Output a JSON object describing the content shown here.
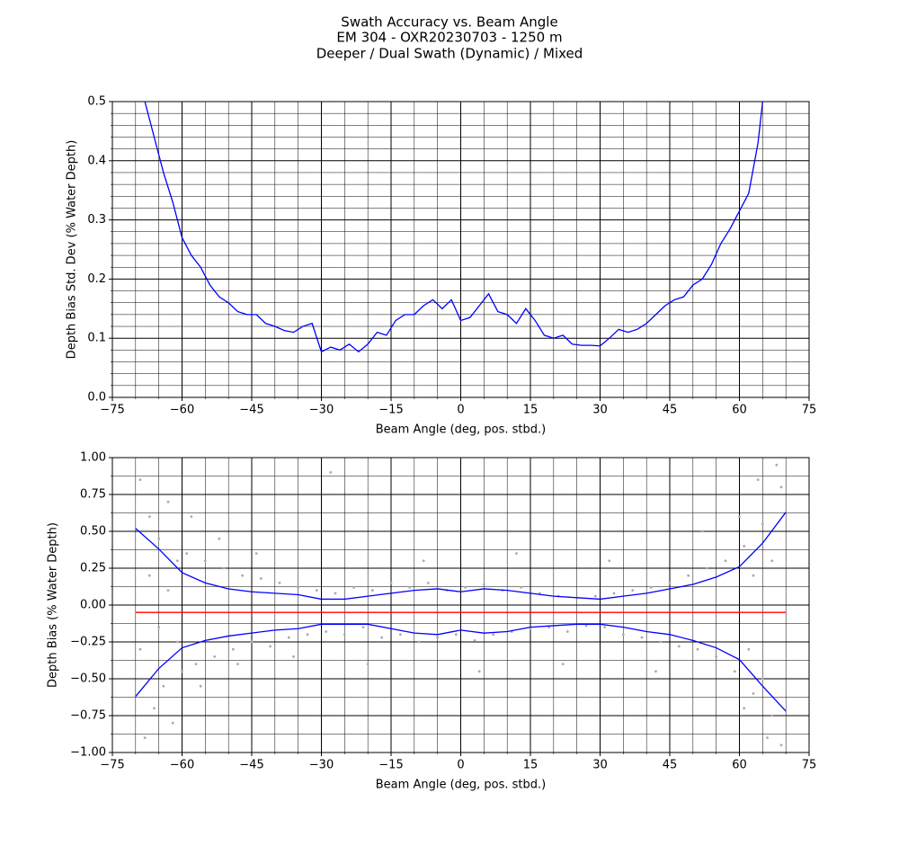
{
  "title": [
    "Swath Accuracy vs. Beam Angle",
    "EM 304 - OXR20230703 - 1250 m",
    "Deeper / Dual Swath (Dynamic) / Mixed"
  ],
  "chart_data": [
    {
      "type": "line",
      "xlabel": "Beam Angle (deg, pos. stbd.)",
      "ylabel": "Depth Bias Std. Dev (% Water Depth)",
      "xlim": [
        -75,
        75
      ],
      "ylim": [
        0,
        0.5
      ],
      "xticks": [
        {
          "value": -75,
          "label": "−75"
        },
        {
          "value": -60,
          "label": "−60"
        },
        {
          "value": -45,
          "label": "−45"
        },
        {
          "value": -30,
          "label": "−30"
        },
        {
          "value": -15,
          "label": "−15"
        },
        0,
        15,
        30,
        45,
        60,
        75
      ],
      "yticks": [
        {
          "value": 0,
          "label": "0.0"
        },
        0.1,
        0.2,
        0.3,
        0.4,
        0.5
      ],
      "xminorticks": [
        -70,
        -65,
        -55,
        -50,
        -40,
        -35,
        -25,
        -20,
        -10,
        -5,
        5,
        10,
        20,
        25,
        35,
        40,
        50,
        55,
        65,
        70
      ],
      "yminorticks": [
        0.02,
        0.04,
        0.06,
        0.08,
        0.12,
        0.14,
        0.16,
        0.18,
        0.22,
        0.24,
        0.26,
        0.28,
        0.32,
        0.34,
        0.36,
        0.38,
        0.42,
        0.44,
        0.46,
        0.48
      ],
      "grid": true,
      "series": [
        {
          "type": "line",
          "color": "#0000ff",
          "x": [
            -68,
            -66,
            -64,
            -62,
            -60,
            -58,
            -56,
            -54,
            -52,
            -50,
            -48,
            -46,
            -44,
            -42,
            -40,
            -38,
            -36,
            -34,
            -32,
            -30,
            -28,
            -26,
            -24,
            -22,
            -20,
            -18,
            -16,
            -14,
            -12,
            -10,
            -8,
            -6,
            -4,
            -2,
            0,
            2,
            4,
            6,
            8,
            10,
            12,
            14,
            16,
            18,
            20,
            22,
            24,
            26,
            28,
            30,
            32,
            34,
            36,
            38,
            40,
            42,
            44,
            46,
            48,
            50,
            52,
            54,
            56,
            58,
            60,
            62,
            64,
            65
          ],
          "values": [
            0.5,
            0.44,
            0.38,
            0.33,
            0.27,
            0.24,
            0.22,
            0.19,
            0.17,
            0.16,
            0.145,
            0.14,
            0.14,
            0.125,
            0.12,
            0.113,
            0.11,
            0.12,
            0.125,
            0.077,
            0.085,
            0.08,
            0.09,
            0.077,
            0.09,
            0.11,
            0.105,
            0.13,
            0.14,
            0.14,
            0.155,
            0.165,
            0.15,
            0.165,
            0.13,
            0.135,
            0.155,
            0.175,
            0.145,
            0.14,
            0.125,
            0.15,
            0.13,
            0.105,
            0.1,
            0.105,
            0.09,
            0.088,
            0.088,
            0.087,
            0.1,
            0.115,
            0.11,
            0.115,
            0.125,
            0.14,
            0.155,
            0.165,
            0.17,
            0.19,
            0.2,
            0.225,
            0.26,
            0.285,
            0.315,
            0.345,
            0.43,
            0.5
          ]
        }
      ]
    },
    {
      "type": "scatter",
      "xlabel": "Beam Angle (deg, pos. stbd.)",
      "ylabel": "Depth Bias (% Water Depth)",
      "xlim": [
        -75,
        75
      ],
      "ylim": [
        -1,
        1
      ],
      "xticks": [
        {
          "value": -75,
          "label": "−75"
        },
        {
          "value": -60,
          "label": "−60"
        },
        {
          "value": -45,
          "label": "−45"
        },
        {
          "value": -30,
          "label": "−30"
        },
        {
          "value": -15,
          "label": "−15"
        },
        0,
        15,
        30,
        45,
        60,
        75
      ],
      "yticks": [
        {
          "value": -1,
          "label": "−1.00"
        },
        {
          "value": -0.75,
          "label": "−0.75"
        },
        {
          "value": -0.5,
          "label": "−0.50"
        },
        {
          "value": -0.25,
          "label": "−0.25"
        },
        {
          "value": 0,
          "label": "0.00"
        },
        0.25,
        {
          "value": 0.5,
          "label": "0.50"
        },
        0.75,
        {
          "value": 1,
          "label": "1.00"
        }
      ],
      "xminorticks": [
        -70,
        -65,
        -55,
        -50,
        -40,
        -35,
        -25,
        -20,
        -10,
        -5,
        5,
        10,
        20,
        25,
        35,
        40,
        50,
        55,
        65,
        70
      ],
      "yminorticks": [
        -0.875,
        -0.625,
        -0.375,
        -0.125,
        0.125,
        0.375,
        0.625,
        0.875
      ],
      "grid": true,
      "series": [
        {
          "type": "scatter",
          "color": "#aaaaaa",
          "x": [
            -69,
            -68,
            -67,
            -66,
            -65,
            -64,
            -63,
            -62,
            -61,
            -60,
            -69,
            -67,
            -65,
            -63,
            -61,
            -59,
            -57,
            -55,
            -53,
            -51,
            -49,
            -47,
            -45,
            -43,
            -41,
            -39,
            -37,
            -35,
            -33,
            -31,
            -29,
            -27,
            -25,
            -23,
            -21,
            -19,
            -17,
            -15,
            -13,
            -11,
            -9,
            -7,
            -5,
            -3,
            -1,
            1,
            3,
            5,
            7,
            9,
            11,
            13,
            15,
            17,
            19,
            21,
            23,
            25,
            27,
            29,
            31,
            33,
            35,
            37,
            39,
            41,
            43,
            45,
            47,
            49,
            51,
            53,
            55,
            57,
            59,
            61,
            63,
            65,
            67,
            69,
            60,
            62,
            64,
            66,
            68,
            69,
            67,
            65,
            63,
            61,
            -58,
            -56,
            -52,
            -48,
            -44,
            -36,
            -28,
            -20,
            -8,
            4,
            12,
            22,
            32,
            42,
            52
          ],
          "values": [
            0.85,
            -0.9,
            0.6,
            -0.7,
            0.45,
            -0.55,
            0.7,
            -0.8,
            0.3,
            -0.45,
            -0.3,
            0.2,
            -0.15,
            0.1,
            -0.25,
            0.35,
            -0.4,
            0.3,
            -0.35,
            0.25,
            -0.3,
            0.2,
            -0.25,
            0.18,
            -0.28,
            0.15,
            -0.22,
            0.12,
            -0.2,
            0.1,
            -0.18,
            0.08,
            -0.2,
            0.12,
            -0.15,
            0.1,
            -0.22,
            0.15,
            -0.2,
            0.12,
            -0.25,
            0.15,
            -0.22,
            0.1,
            -0.2,
            0.12,
            -0.24,
            0.14,
            -0.2,
            0.1,
            -0.18,
            0.12,
            -0.16,
            0.08,
            -0.15,
            0.06,
            -0.18,
            0.05,
            -0.14,
            0.06,
            -0.15,
            0.08,
            -0.2,
            0.1,
            -0.22,
            0.12,
            -0.25,
            0.15,
            -0.28,
            0.2,
            -0.3,
            0.25,
            -0.35,
            0.3,
            -0.45,
            0.4,
            -0.6,
            0.55,
            -0.75,
            0.8,
            0.6,
            -0.3,
            0.85,
            -0.9,
            0.95,
            -0.95,
            0.3,
            -0.5,
            0.2,
            -0.7,
            0.6,
            -0.55,
            0.45,
            -0.4,
            0.35,
            -0.35,
            0.9,
            -0.4,
            0.3,
            -0.45,
            0.35,
            -0.4,
            0.3,
            -0.45,
            0.5
          ]
        },
        {
          "type": "line",
          "color": "#ff0000",
          "x": [
            -70,
            70
          ],
          "values": [
            -0.05,
            -0.05
          ]
        },
        {
          "type": "line",
          "color": "#0000ff",
          "x": [
            -70,
            -65,
            -60,
            -55,
            -50,
            -45,
            -40,
            -35,
            -30,
            -25,
            -20,
            -15,
            -10,
            -5,
            0,
            5,
            10,
            15,
            20,
            25,
            30,
            35,
            40,
            45,
            50,
            55,
            60,
            65,
            70
          ],
          "values": [
            0.52,
            0.38,
            0.22,
            0.15,
            0.11,
            0.09,
            0.08,
            0.07,
            0.04,
            0.04,
            0.06,
            0.08,
            0.1,
            0.11,
            0.09,
            0.11,
            0.1,
            0.08,
            0.06,
            0.05,
            0.04,
            0.06,
            0.08,
            0.11,
            0.14,
            0.19,
            0.26,
            0.42,
            0.63
          ]
        },
        {
          "type": "line",
          "color": "#0000ff",
          "x": [
            -70,
            -65,
            -60,
            -55,
            -50,
            -45,
            -40,
            -35,
            -30,
            -25,
            -20,
            -15,
            -10,
            -5,
            0,
            5,
            10,
            15,
            20,
            25,
            30,
            35,
            40,
            45,
            50,
            55,
            60,
            65,
            70
          ],
          "values": [
            -0.62,
            -0.43,
            -0.29,
            -0.24,
            -0.21,
            -0.19,
            -0.17,
            -0.16,
            -0.13,
            -0.13,
            -0.13,
            -0.16,
            -0.19,
            -0.2,
            -0.17,
            -0.19,
            -0.18,
            -0.15,
            -0.14,
            -0.13,
            -0.13,
            -0.15,
            -0.18,
            -0.2,
            -0.24,
            -0.29,
            -0.37,
            -0.55,
            -0.72
          ]
        }
      ]
    }
  ]
}
